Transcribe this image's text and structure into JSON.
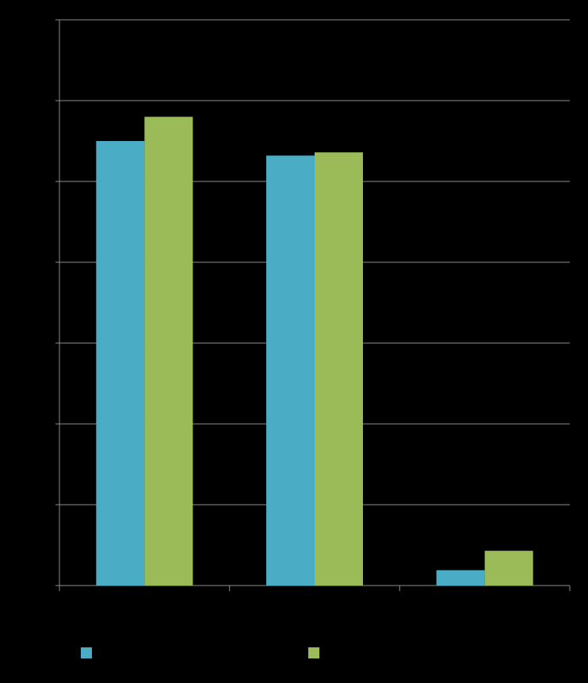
{
  "chart_data": {
    "type": "bar",
    "categories": [
      null,
      null,
      null
    ],
    "series": [
      {
        "color": "#4bacc6",
        "values": [
          5.5,
          5.32,
          0.19
        ]
      },
      {
        "color": "#9bbb59",
        "values": [
          5.8,
          5.36,
          0.43
        ]
      }
    ],
    "ylim": [
      0,
      7
    ],
    "yticks": [
      0,
      1,
      2,
      3,
      4,
      5,
      6,
      7
    ],
    "grid": true
  }
}
